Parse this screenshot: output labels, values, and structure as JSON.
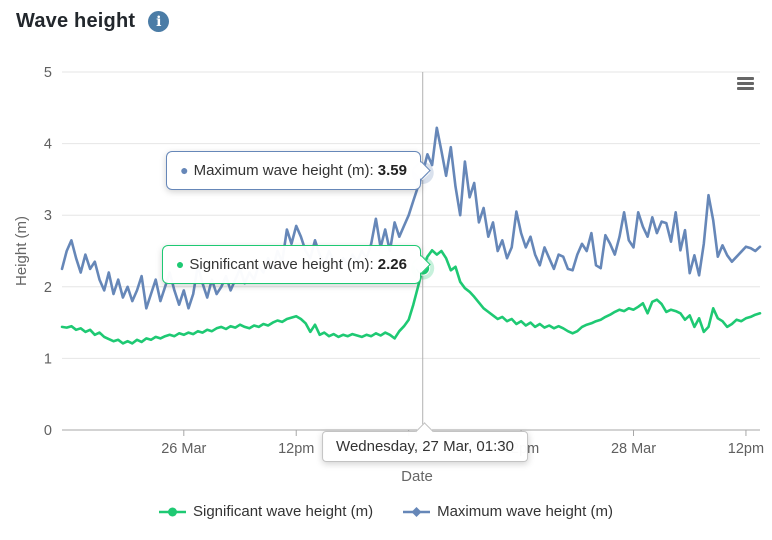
{
  "header": {
    "title": "Wave height"
  },
  "y_axis": {
    "title": "Height (m)",
    "tick_labels": [
      "0",
      "1",
      "2",
      "3",
      "4",
      "5"
    ]
  },
  "x_axis": {
    "title": "Date"
  },
  "tooltips": {
    "maximum": {
      "label": "Maximum wave height (m): ",
      "value": "3.59"
    },
    "significant": {
      "label": "Significant wave height (m): ",
      "value": "2.26"
    },
    "date": "Wednesday, 27 Mar, 01:30"
  },
  "legend": {
    "significant": "Significant wave height (m)",
    "maximum": "Maximum wave height (m)"
  },
  "colors": {
    "significant": "#1ec973",
    "maximum": "#6687b8",
    "grid": "#e6e6e6",
    "axis_line": "#a7a7a7",
    "axis_label": "#606060",
    "axis_title": "#666666",
    "crosshair": "#b1b1b1"
  },
  "chart_data": {
    "type": "line",
    "title": "Wave height",
    "xlabel": "Date",
    "ylabel": "Height (m)",
    "ylim": [
      0,
      5
    ],
    "grid": "horizontal",
    "legend_position": "bottom",
    "x_start": "25 Mar 11:00",
    "x_end": "28 Mar 13:30",
    "interval_minutes": 30,
    "x_tick_labels": [
      "26 Mar",
      "12pm",
      "27 Mar",
      "12pm",
      "28 Mar",
      "12pm"
    ],
    "x_tick_indices": [
      26,
      50,
      74,
      98,
      122,
      146
    ],
    "selected_point": {
      "index": 77,
      "x_label": "Wednesday, 27 Mar, 01:30",
      "significant": 2.26,
      "maximum": 3.59
    },
    "series": [
      {
        "name": "Maximum wave height (m)",
        "color": "#6687b8",
        "marker": "diamond",
        "values": [
          2.25,
          2.5,
          2.65,
          2.4,
          2.2,
          2.45,
          2.25,
          2.35,
          2.1,
          1.95,
          2.2,
          1.9,
          2.1,
          1.85,
          2.0,
          1.8,
          1.95,
          2.15,
          1.7,
          1.9,
          2.1,
          1.8,
          2.0,
          2.2,
          1.95,
          1.75,
          1.95,
          1.7,
          1.9,
          2.3,
          2.05,
          1.85,
          2.1,
          1.9,
          2.0,
          2.15,
          1.95,
          2.1,
          2.25,
          2.05,
          2.2,
          2.1,
          2.3,
          2.2,
          2.4,
          2.25,
          2.5,
          2.35,
          2.8,
          2.6,
          2.85,
          2.7,
          2.5,
          2.4,
          2.65,
          2.45,
          2.3,
          2.5,
          2.35,
          2.25,
          2.4,
          2.3,
          2.45,
          2.35,
          2.5,
          2.4,
          2.6,
          2.95,
          2.55,
          2.8,
          2.5,
          2.9,
          2.7,
          2.85,
          3.0,
          3.2,
          3.4,
          3.59,
          3.85,
          3.7,
          4.22,
          3.9,
          3.55,
          3.95,
          3.4,
          3.0,
          3.75,
          3.25,
          3.45,
          2.9,
          3.1,
          2.7,
          2.9,
          2.5,
          2.65,
          2.4,
          2.55,
          3.05,
          2.75,
          2.55,
          2.7,
          2.45,
          2.3,
          2.55,
          2.4,
          2.25,
          2.45,
          2.42,
          2.25,
          2.23,
          2.45,
          2.6,
          2.5,
          2.75,
          2.3,
          2.26,
          2.72,
          2.6,
          2.45,
          2.7,
          3.04,
          2.65,
          2.55,
          3.04,
          2.84,
          2.7,
          2.97,
          2.75,
          2.91,
          2.89,
          2.63,
          3.04,
          2.51,
          2.79,
          2.19,
          2.44,
          2.16,
          2.6,
          3.28,
          2.93,
          2.42,
          2.58,
          2.44,
          2.35,
          2.42,
          2.49,
          2.56,
          2.54,
          2.5,
          2.56
        ]
      },
      {
        "name": "Significant wave height (m)",
        "color": "#1ec973",
        "marker": "circle",
        "values": [
          1.44,
          1.43,
          1.45,
          1.4,
          1.42,
          1.37,
          1.4,
          1.33,
          1.36,
          1.3,
          1.27,
          1.24,
          1.26,
          1.21,
          1.24,
          1.21,
          1.26,
          1.23,
          1.28,
          1.26,
          1.3,
          1.28,
          1.31,
          1.33,
          1.31,
          1.35,
          1.33,
          1.36,
          1.34,
          1.38,
          1.36,
          1.4,
          1.38,
          1.42,
          1.44,
          1.41,
          1.45,
          1.43,
          1.47,
          1.44,
          1.42,
          1.46,
          1.44,
          1.48,
          1.46,
          1.5,
          1.53,
          1.51,
          1.55,
          1.57,
          1.59,
          1.55,
          1.49,
          1.37,
          1.47,
          1.33,
          1.36,
          1.31,
          1.34,
          1.3,
          1.33,
          1.31,
          1.34,
          1.32,
          1.3,
          1.33,
          1.31,
          1.35,
          1.32,
          1.36,
          1.33,
          1.28,
          1.38,
          1.45,
          1.54,
          1.75,
          2.0,
          2.26,
          2.42,
          2.51,
          2.45,
          2.5,
          2.4,
          2.23,
          2.28,
          2.07,
          1.98,
          1.93,
          1.86,
          1.78,
          1.7,
          1.65,
          1.6,
          1.55,
          1.58,
          1.52,
          1.55,
          1.48,
          1.52,
          1.46,
          1.5,
          1.44,
          1.48,
          1.43,
          1.46,
          1.42,
          1.45,
          1.42,
          1.38,
          1.35,
          1.38,
          1.44,
          1.47,
          1.49,
          1.52,
          1.54,
          1.58,
          1.61,
          1.65,
          1.68,
          1.66,
          1.7,
          1.68,
          1.72,
          1.77,
          1.63,
          1.79,
          1.82,
          1.76,
          1.65,
          1.68,
          1.66,
          1.63,
          1.54,
          1.6,
          1.44,
          1.56,
          1.37,
          1.44,
          1.7,
          1.56,
          1.52,
          1.44,
          1.48,
          1.54,
          1.52,
          1.56,
          1.58,
          1.61,
          1.63
        ]
      }
    ]
  }
}
